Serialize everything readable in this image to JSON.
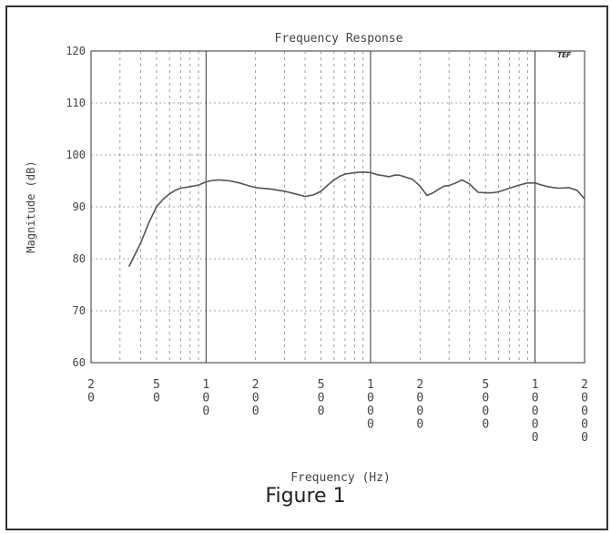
{
  "chart_data": {
    "type": "line",
    "title": "Frequency Response",
    "xlabel": "Frequency (Hz)",
    "ylabel": "Magnitude (dB)",
    "x_scale": "log",
    "xlim": [
      20,
      20000
    ],
    "ylim": [
      60,
      120
    ],
    "grid": true,
    "y_ticks": [
      120,
      110,
      100,
      90,
      80,
      70,
      60
    ],
    "x_ticks": [
      {
        "value": 20,
        "label": "20"
      },
      {
        "value": 50,
        "label": "50"
      },
      {
        "value": 100,
        "label": "100"
      },
      {
        "value": 200,
        "label": "200"
      },
      {
        "value": 500,
        "label": "500"
      },
      {
        "value": 1000,
        "label": "1000"
      },
      {
        "value": 2000,
        "label": "2000"
      },
      {
        "value": 5000,
        "label": "5000"
      },
      {
        "value": 10000,
        "label": "10000"
      },
      {
        "value": 20000,
        "label": "20000"
      }
    ],
    "series": [
      {
        "x": [
          34,
          40,
          45,
          50,
          55,
          60,
          65,
          70,
          80,
          90,
          100,
          110,
          120,
          140,
          160,
          180,
          200,
          250,
          300,
          350,
          400,
          450,
          500,
          550,
          600,
          650,
          700,
          800,
          900,
          1000,
          1100,
          1200,
          1300,
          1400,
          1500,
          1600,
          1800,
          2000,
          2200,
          2400,
          2600,
          2800,
          3000,
          3300,
          3600,
          4000,
          4500,
          5000,
          5500,
          6000,
          7000,
          8000,
          9000,
          10000,
          11000,
          12000,
          13000,
          14000,
          16000,
          18000,
          20000
        ],
        "y": [
          78.5,
          83,
          87,
          90,
          91.5,
          92.5,
          93.2,
          93.6,
          93.9,
          94.2,
          94.8,
          95.1,
          95.2,
          95.0,
          94.6,
          94.1,
          93.7,
          93.4,
          93.0,
          92.5,
          92.0,
          92.3,
          93.0,
          94.2,
          95.2,
          95.9,
          96.3,
          96.6,
          96.7,
          96.6,
          96.2,
          96.0,
          95.8,
          96.1,
          96.1,
          95.8,
          95.3,
          94.0,
          92.2,
          92.7,
          93.4,
          94.0,
          94.1,
          94.6,
          95.2,
          94.4,
          92.8,
          92.7,
          92.7,
          92.9,
          93.6,
          94.2,
          94.6,
          94.6,
          94.2,
          93.9,
          93.7,
          93.6,
          93.7,
          93.2,
          91.5
        ]
      }
    ]
  },
  "figure_caption": "Figure 1",
  "logo_text": "TEF",
  "colors": {
    "line": "#555555",
    "axis": "#333333",
    "grid": "#888888",
    "text": "#444444"
  }
}
